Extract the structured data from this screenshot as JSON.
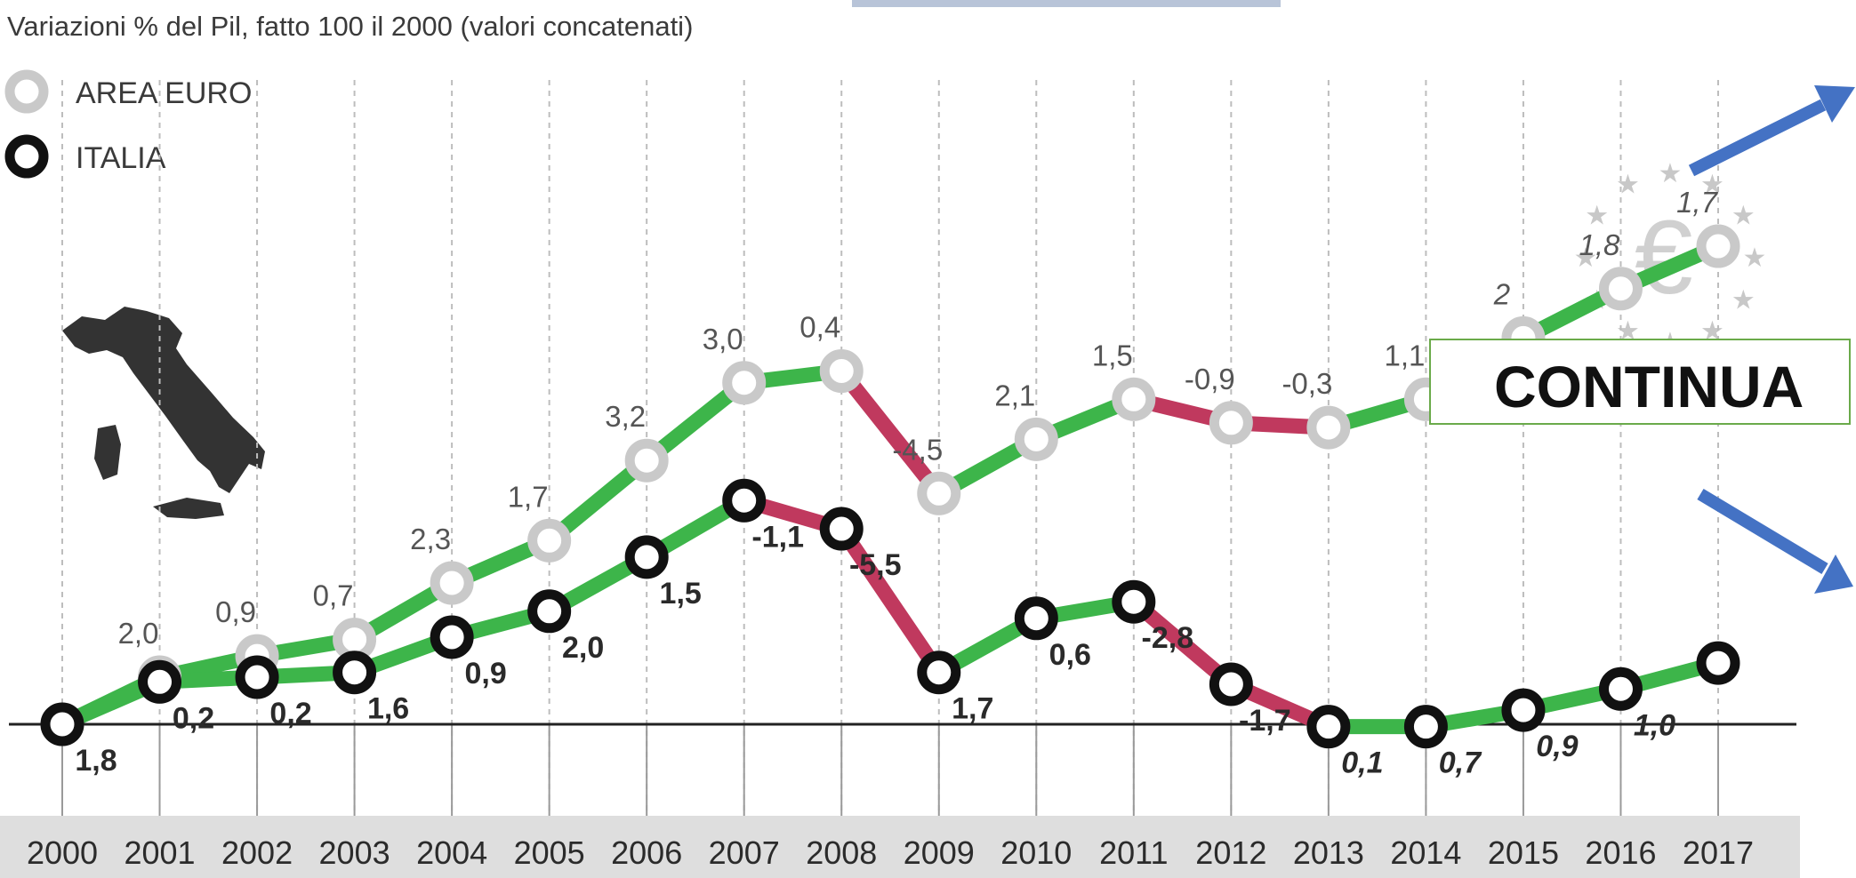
{
  "chart_data": {
    "type": "line",
    "title": "Variazioni  % del Pil, fatto 100 il 2000 (valori concatenati)",
    "categories": [
      "2000",
      "2001",
      "2002",
      "2003",
      "2004",
      "2005",
      "2006",
      "2007",
      "2008",
      "2009",
      "2010",
      "2011",
      "2012",
      "2013",
      "2014",
      "2015",
      "2016",
      "2017"
    ],
    "index_ylim": [
      99,
      114
    ],
    "series": [
      {
        "name": "AREA EURO",
        "marker_color": "#c9c9c9",
        "index_values": [
          100,
          102.0,
          102.9,
          103.6,
          106.0,
          107.8,
          111.2,
          114.5,
          115.0,
          109.8,
          112.1,
          113.8,
          112.8,
          112.6,
          113.8,
          116.4,
          118.5,
          120.3
        ],
        "labels": [
          "",
          "2,0",
          "0,9",
          "0,7",
          "2,3",
          "1,7",
          "3,2",
          "3,0",
          "0,4",
          "-4,5",
          "2,1",
          "1,5",
          "-0,9",
          "-0,3",
          "1,1",
          "2",
          "1,8",
          "1,7"
        ]
      },
      {
        "name": "ITALIA",
        "marker_color": "#111111",
        "index_values": [
          100,
          101.8,
          102.0,
          102.2,
          103.7,
          104.8,
          107.1,
          109.5,
          108.3,
          102.2,
          104.5,
          105.2,
          101.7,
          99.9,
          99.9,
          100.6,
          101.5,
          102.6
        ],
        "labels": [
          "1,8",
          "0,2",
          "0,2",
          "1,6",
          "0,9",
          "2,0",
          "1,5",
          "-1,1",
          "-5,5",
          "1,7",
          "0,6",
          "-2,8",
          "-1,7",
          "0,1",
          "0,7",
          "0,9",
          "1,0",
          ""
        ]
      }
    ],
    "colors": {
      "growth": "#3db54a",
      "decline": "#c0395e",
      "axis_band": "#dedede"
    },
    "legend": {
      "position": "top-left"
    },
    "grid": true
  },
  "overlay": {
    "continua_label": "CONTINUA",
    "decorations": [
      "italy-map",
      "euro-stars-logo",
      "blue-arrow-up",
      "blue-arrow-down"
    ]
  }
}
